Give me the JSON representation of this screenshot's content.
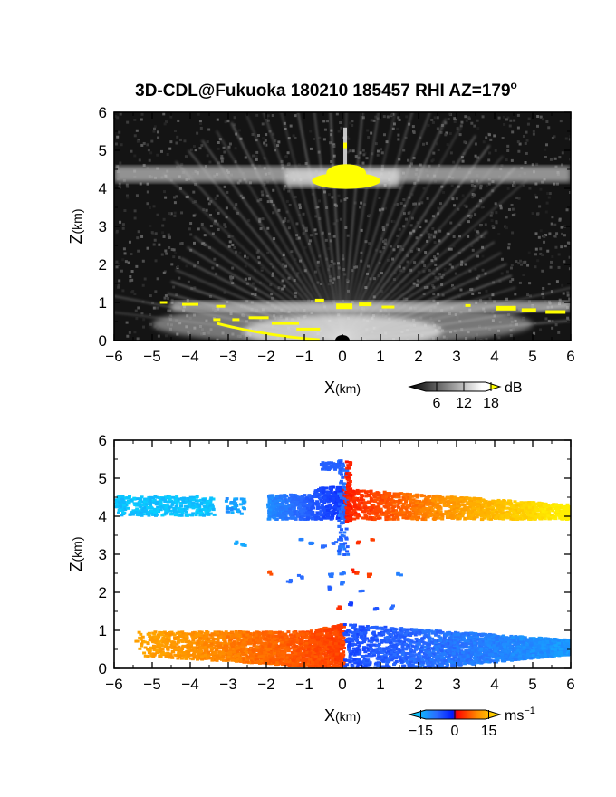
{
  "figure": {
    "title_main": "3D-CDL@Fukuoka 180210 185457 RHI AZ=179",
    "title_degree": "o"
  },
  "chart_data": [
    {
      "type": "heatmap",
      "name": "intensity-panel",
      "xlabel_main": "X",
      "xlabel_unit": "(km)",
      "ylabel_main": "Z",
      "ylabel_unit": "(km)",
      "xlim": [
        -6,
        6
      ],
      "ylim": [
        0,
        6
      ],
      "xticks": [
        "−6",
        "−5",
        "−4",
        "−3",
        "−2",
        "−1",
        "0",
        "1",
        "2",
        "3",
        "4",
        "5",
        "6"
      ],
      "yticks": [
        "0",
        "1",
        "2",
        "3",
        "4",
        "5",
        "6"
      ],
      "colorbar": {
        "unit": "dB",
        "ticks": [
          "6",
          "12",
          "18"
        ],
        "tick_values": [
          6,
          12,
          18
        ],
        "range": [
          0,
          20
        ]
      },
      "features": [
        {
          "label": "",
          "z_km": 4.35,
          "x_from": -6,
          "x_to": 6
        },
        {
          "label": "",
          "z_km": 0.9,
          "x_from": -4.5,
          "x_to": 6
        },
        {
          "label": "",
          "z_km": 4.2,
          "x_from": -0.8,
          "x_to": 1.0
        }
      ]
    },
    {
      "type": "scatter",
      "name": "velocity-panel",
      "xlabel_main": "X",
      "xlabel_unit": "(km)",
      "ylabel_main": "Z",
      "ylabel_unit": "(km)",
      "xlim": [
        -6,
        6
      ],
      "ylim": [
        0,
        6
      ],
      "xticks": [
        "−6",
        "−5",
        "−4",
        "−3",
        "−2",
        "−1",
        "0",
        "1",
        "2",
        "3",
        "4",
        "5",
        "6"
      ],
      "yticks": [
        "0",
        "1",
        "2",
        "3",
        "4",
        "5",
        "6"
      ],
      "colorbar": {
        "unit_main": "ms",
        "unit_sup": "−1",
        "ticks": [
          "−15",
          "0",
          "15"
        ],
        "tick_values": [
          -15,
          0,
          15
        ],
        "range": [
          -20,
          20
        ]
      },
      "series": [
        {
          "label": "",
          "z_range": [
            4.0,
            4.6
          ],
          "x_range": [
            -6,
            -3.3
          ],
          "velocity": -18
        },
        {
          "label": "",
          "z_range": [
            3.9,
            4.7
          ],
          "x_range": [
            -2.0,
            0
          ],
          "velocity": -8
        },
        {
          "label": "",
          "z_range": [
            3.9,
            4.7
          ],
          "x_range": [
            0,
            6
          ],
          "velocity": 10
        },
        {
          "label": "",
          "z_range": [
            0.35,
            1.0
          ],
          "x_range": [
            -5.5,
            0
          ],
          "velocity": 9
        },
        {
          "label": "",
          "z_range": [
            0.0,
            1.2
          ],
          "x_range": [
            0,
            6
          ],
          "velocity": -8
        }
      ]
    }
  ]
}
